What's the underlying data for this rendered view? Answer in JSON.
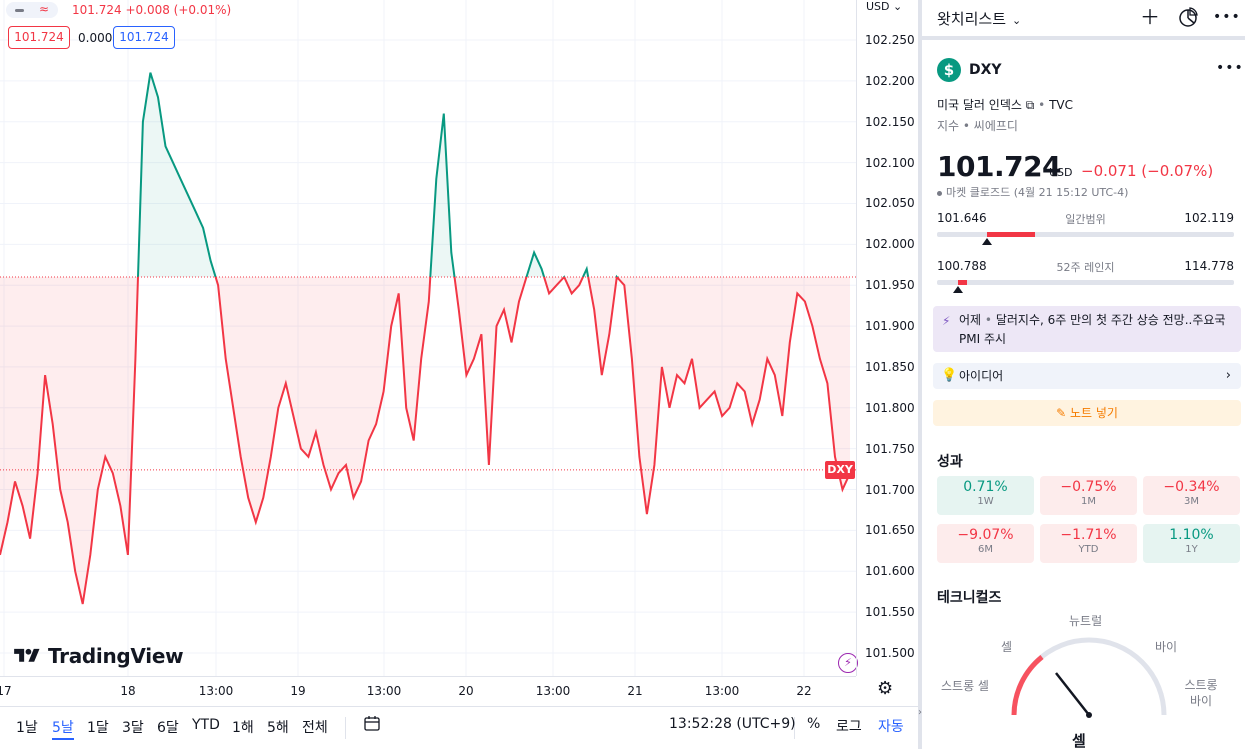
{
  "chart": {
    "currency_label": "USD",
    "legend_price": "101.724 +0.008 (+0.01%)",
    "bid_box": "101.724",
    "spread": "0.000",
    "ask_box": "101.724",
    "symbol_tag": "DXY",
    "logo_text": "TradingView",
    "price_ticks": [
      "102.250",
      "102.200",
      "102.150",
      "102.100",
      "102.050",
      "102.000",
      "101.950",
      "101.900",
      "101.850",
      "101.800",
      "101.750",
      "101.700",
      "101.650",
      "101.600",
      "101.550",
      "101.500"
    ],
    "time_ticks": [
      "17",
      "18",
      "13:00",
      "19",
      "13:00",
      "20",
      "13:00",
      "21",
      "13:00",
      "22"
    ]
  },
  "chart_data": {
    "type": "area",
    "title": "",
    "xlabel": "",
    "ylabel": "",
    "ylim": [
      101.48,
      102.26
    ],
    "baseline": 101.96,
    "last_price": 101.724,
    "series": [
      {
        "values": [
          101.62,
          101.66,
          101.71,
          101.68,
          101.64,
          101.72,
          101.84,
          101.78,
          101.7,
          101.66,
          101.6,
          101.56,
          101.62,
          101.7,
          101.74,
          101.72,
          101.68,
          101.62,
          101.86,
          102.15,
          102.21,
          102.18,
          102.12,
          102.1,
          102.08,
          102.06,
          102.04,
          102.02,
          101.98,
          101.95,
          101.86,
          101.8,
          101.74,
          101.69,
          101.66,
          101.69,
          101.74,
          101.8,
          101.83,
          101.79,
          101.75,
          101.74,
          101.77,
          101.73,
          101.7,
          101.72,
          101.73,
          101.69,
          101.71,
          101.76,
          101.78,
          101.82,
          101.9,
          101.94,
          101.8,
          101.76,
          101.86,
          101.93,
          102.08,
          102.16,
          101.99,
          101.92,
          101.84,
          101.86,
          101.89,
          101.73,
          101.9,
          101.92,
          101.88,
          101.93,
          101.96,
          101.99,
          101.97,
          101.94,
          101.95,
          101.96,
          101.94,
          101.95,
          101.97,
          101.92,
          101.84,
          101.89,
          101.96,
          101.95,
          101.86,
          101.74,
          101.67,
          101.73,
          101.85,
          101.8,
          101.84,
          101.83,
          101.86,
          101.8,
          101.81,
          101.82,
          101.79,
          101.8,
          101.83,
          101.82,
          101.78,
          101.81,
          101.86,
          101.84,
          101.79,
          101.88,
          101.94,
          101.93,
          101.9,
          101.86,
          101.83,
          101.74,
          101.7,
          101.72
        ]
      }
    ]
  },
  "bottom_toolbar": {
    "ranges": [
      "1날",
      "5날",
      "1달",
      "3달",
      "6달",
      "YTD",
      "1해",
      "5해",
      "전체"
    ],
    "clock": "13:52:28 (UTC+9)",
    "percent": "%",
    "log": "로그",
    "auto": "자동"
  },
  "panel": {
    "watchlist_title": "왓치리스트",
    "symbol": "DXY",
    "symbol_badge": "$",
    "description": "미국 달러 인덱스",
    "exchange": "TVC",
    "type_text": "지수 • 씨에프디",
    "price": "101.724",
    "price_currency": "USD",
    "change": "−0.071 (−0.07%)",
    "market_status": "마켓 클로즈드",
    "market_time": "(4월 21 15:12 UTC-4)",
    "day_range": {
      "low": "101.646",
      "label": "일간범위",
      "high": "102.119",
      "fill_start": 0.17,
      "fill_end": 0.33,
      "pointer": 0.17
    },
    "year_range": {
      "low": "100.788",
      "label": "52주 레인지",
      "high": "114.778",
      "fill_start": 0.07,
      "fill_end": 0.1,
      "pointer": 0.07
    },
    "news_prefix": "어제",
    "news_text": "달러지수, 6주 만의 첫 주간 상승 전망..주요국 PMI 주시",
    "ideas_label": "아이디어",
    "note_label": "노트 넣기",
    "performance_title": "성과",
    "performance": [
      {
        "value": "0.71%",
        "period": "1W",
        "sign": "pos"
      },
      {
        "value": "−0.75%",
        "period": "1M",
        "sign": "neg"
      },
      {
        "value": "−0.34%",
        "period": "3M",
        "sign": "neg"
      },
      {
        "value": "−9.07%",
        "period": "6M",
        "sign": "neg"
      },
      {
        "value": "−1.71%",
        "period": "YTD",
        "sign": "neg"
      },
      {
        "value": "1.10%",
        "period": "1Y",
        "sign": "pos"
      }
    ],
    "technicals_title": "테크니컬즈",
    "gauge": {
      "neutral": "뉴트럴",
      "sell": "셀",
      "buy": "바이",
      "strong_sell": "스트롱 셀",
      "strong_buy": "스트롱 바이",
      "result": "셀"
    }
  },
  "colors": {
    "down": "#f23645",
    "up": "#089981",
    "accent": "#2962ff"
  }
}
